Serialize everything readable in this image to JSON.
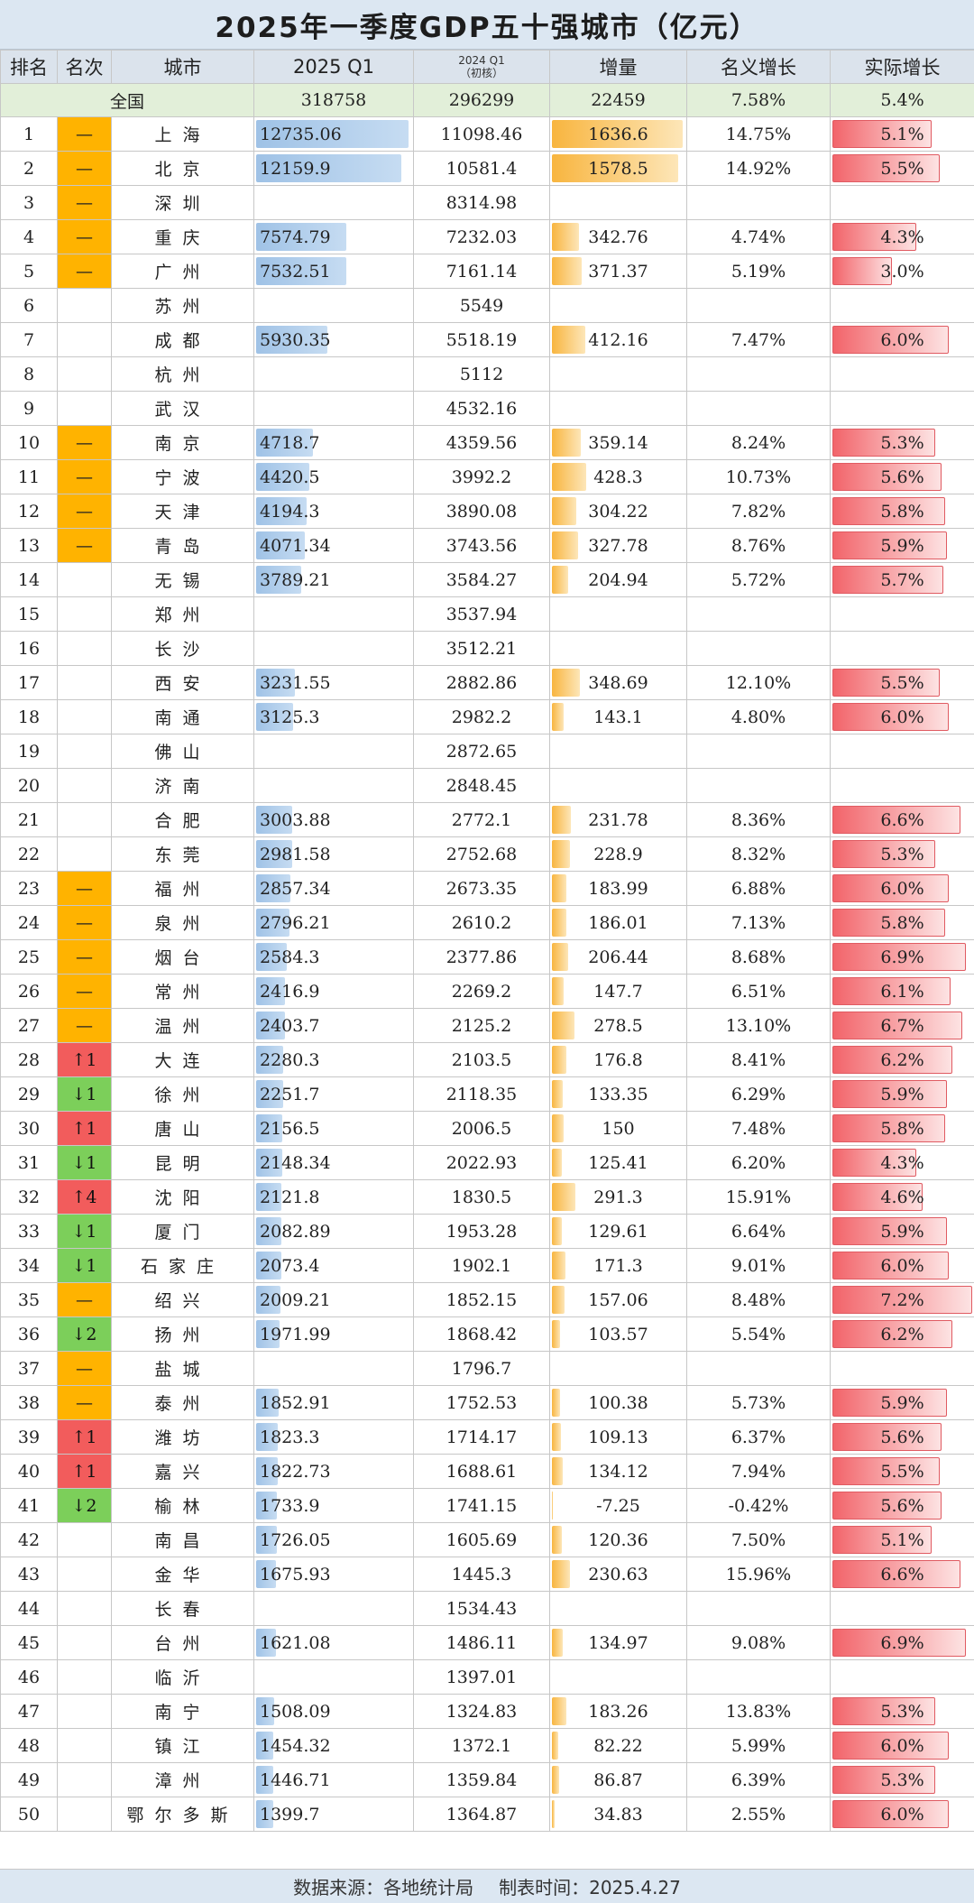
{
  "title": "2025年一季度GDP五十强城市（亿元）",
  "headers": {
    "rank": "排名",
    "change": "名次",
    "city": "城市",
    "q1_2025": "2025 Q1",
    "q1_2024_top": "2024 Q1",
    "q1_2024_bottom": "（初核）",
    "increase": "增量",
    "nominal": "名义增长",
    "real": "实际增长"
  },
  "national": {
    "label": "全国",
    "q1_2025": "318758",
    "q1_2024": "296299",
    "increase": "22459",
    "nominal": "7.58%",
    "real": "5.4%"
  },
  "colors": {
    "same": "#ffb300",
    "up": "#f25c5c",
    "down": "#7ccf5a",
    "bar_blue": "#9fc2e6",
    "bar_orange": "#f8b53f",
    "bar_red": "#f2646a"
  },
  "rows": [
    {
      "rank": "1",
      "change": "—",
      "dir": "same",
      "city": "上海",
      "q25": "12735.06",
      "q24": "11098.46",
      "inc": "1636.6",
      "nom": "14.75%",
      "real": "5.1%"
    },
    {
      "rank": "2",
      "change": "—",
      "dir": "same",
      "city": "北京",
      "q25": "12159.9",
      "q24": "10581.4",
      "inc": "1578.5",
      "nom": "14.92%",
      "real": "5.5%"
    },
    {
      "rank": "3",
      "change": "—",
      "dir": "same",
      "city": "深圳",
      "q25": "",
      "q24": "8314.98",
      "inc": "",
      "nom": "",
      "real": ""
    },
    {
      "rank": "4",
      "change": "—",
      "dir": "same",
      "city": "重庆",
      "q25": "7574.79",
      "q24": "7232.03",
      "inc": "342.76",
      "nom": "4.74%",
      "real": "4.3%"
    },
    {
      "rank": "5",
      "change": "—",
      "dir": "same",
      "city": "广州",
      "q25": "7532.51",
      "q24": "7161.14",
      "inc": "371.37",
      "nom": "5.19%",
      "real": "3.0%"
    },
    {
      "rank": "6",
      "change": "",
      "dir": "",
      "city": "苏州",
      "q25": "",
      "q24": "5549",
      "inc": "",
      "nom": "",
      "real": ""
    },
    {
      "rank": "7",
      "change": "",
      "dir": "",
      "city": "成都",
      "q25": "5930.35",
      "q24": "5518.19",
      "inc": "412.16",
      "nom": "7.47%",
      "real": "6.0%"
    },
    {
      "rank": "8",
      "change": "",
      "dir": "",
      "city": "杭州",
      "q25": "",
      "q24": "5112",
      "inc": "",
      "nom": "",
      "real": ""
    },
    {
      "rank": "9",
      "change": "",
      "dir": "",
      "city": "武汉",
      "q25": "",
      "q24": "4532.16",
      "inc": "",
      "nom": "",
      "real": ""
    },
    {
      "rank": "10",
      "change": "—",
      "dir": "same",
      "city": "南京",
      "q25": "4718.7",
      "q24": "4359.56",
      "inc": "359.14",
      "nom": "8.24%",
      "real": "5.3%"
    },
    {
      "rank": "11",
      "change": "—",
      "dir": "same",
      "city": "宁波",
      "q25": "4420.5",
      "q24": "3992.2",
      "inc": "428.3",
      "nom": "10.73%",
      "real": "5.6%"
    },
    {
      "rank": "12",
      "change": "—",
      "dir": "same",
      "city": "天津",
      "q25": "4194.3",
      "q24": "3890.08",
      "inc": "304.22",
      "nom": "7.82%",
      "real": "5.8%"
    },
    {
      "rank": "13",
      "change": "—",
      "dir": "same",
      "city": "青岛",
      "q25": "4071.34",
      "q24": "3743.56",
      "inc": "327.78",
      "nom": "8.76%",
      "real": "5.9%"
    },
    {
      "rank": "14",
      "change": "",
      "dir": "",
      "city": "无锡",
      "q25": "3789.21",
      "q24": "3584.27",
      "inc": "204.94",
      "nom": "5.72%",
      "real": "5.7%"
    },
    {
      "rank": "15",
      "change": "",
      "dir": "",
      "city": "郑州",
      "q25": "",
      "q24": "3537.94",
      "inc": "",
      "nom": "",
      "real": ""
    },
    {
      "rank": "16",
      "change": "",
      "dir": "",
      "city": "长沙",
      "q25": "",
      "q24": "3512.21",
      "inc": "",
      "nom": "",
      "real": ""
    },
    {
      "rank": "17",
      "change": "",
      "dir": "",
      "city": "西安",
      "q25": "3231.55",
      "q24": "2882.86",
      "inc": "348.69",
      "nom": "12.10%",
      "real": "5.5%"
    },
    {
      "rank": "18",
      "change": "",
      "dir": "",
      "city": "南通",
      "q25": "3125.3",
      "q24": "2982.2",
      "inc": "143.1",
      "nom": "4.80%",
      "real": "6.0%"
    },
    {
      "rank": "19",
      "change": "",
      "dir": "",
      "city": "佛山",
      "q25": "",
      "q24": "2872.65",
      "inc": "",
      "nom": "",
      "real": ""
    },
    {
      "rank": "20",
      "change": "",
      "dir": "",
      "city": "济南",
      "q25": "",
      "q24": "2848.45",
      "inc": "",
      "nom": "",
      "real": ""
    },
    {
      "rank": "21",
      "change": "",
      "dir": "",
      "city": "合肥",
      "q25": "3003.88",
      "q24": "2772.1",
      "inc": "231.78",
      "nom": "8.36%",
      "real": "6.6%"
    },
    {
      "rank": "22",
      "change": "",
      "dir": "",
      "city": "东莞",
      "q25": "2981.58",
      "q24": "2752.68",
      "inc": "228.9",
      "nom": "8.32%",
      "real": "5.3%"
    },
    {
      "rank": "23",
      "change": "—",
      "dir": "same",
      "city": "福州",
      "q25": "2857.34",
      "q24": "2673.35",
      "inc": "183.99",
      "nom": "6.88%",
      "real": "6.0%"
    },
    {
      "rank": "24",
      "change": "—",
      "dir": "same",
      "city": "泉州",
      "q25": "2796.21",
      "q24": "2610.2",
      "inc": "186.01",
      "nom": "7.13%",
      "real": "5.8%"
    },
    {
      "rank": "25",
      "change": "—",
      "dir": "same",
      "city": "烟台",
      "q25": "2584.3",
      "q24": "2377.86",
      "inc": "206.44",
      "nom": "8.68%",
      "real": "6.9%"
    },
    {
      "rank": "26",
      "change": "—",
      "dir": "same",
      "city": "常州",
      "q25": "2416.9",
      "q24": "2269.2",
      "inc": "147.7",
      "nom": "6.51%",
      "real": "6.1%"
    },
    {
      "rank": "27",
      "change": "—",
      "dir": "same",
      "city": "温州",
      "q25": "2403.7",
      "q24": "2125.2",
      "inc": "278.5",
      "nom": "13.10%",
      "real": "6.7%"
    },
    {
      "rank": "28",
      "change": "↑1",
      "dir": "up",
      "city": "大连",
      "q25": "2280.3",
      "q24": "2103.5",
      "inc": "176.8",
      "nom": "8.41%",
      "real": "6.2%"
    },
    {
      "rank": "29",
      "change": "↓1",
      "dir": "down",
      "city": "徐州",
      "q25": "2251.7",
      "q24": "2118.35",
      "inc": "133.35",
      "nom": "6.29%",
      "real": "5.9%"
    },
    {
      "rank": "30",
      "change": "↑1",
      "dir": "up",
      "city": "唐山",
      "q25": "2156.5",
      "q24": "2006.5",
      "inc": "150",
      "nom": "7.48%",
      "real": "5.8%"
    },
    {
      "rank": "31",
      "change": "↓1",
      "dir": "down",
      "city": "昆明",
      "q25": "2148.34",
      "q24": "2022.93",
      "inc": "125.41",
      "nom": "6.20%",
      "real": "4.3%"
    },
    {
      "rank": "32",
      "change": "↑4",
      "dir": "up",
      "city": "沈阳",
      "q25": "2121.8",
      "q24": "1830.5",
      "inc": "291.3",
      "nom": "15.91%",
      "real": "4.6%"
    },
    {
      "rank": "33",
      "change": "↓1",
      "dir": "down",
      "city": "厦门",
      "q25": "2082.89",
      "q24": "1953.28",
      "inc": "129.61",
      "nom": "6.64%",
      "real": "5.9%"
    },
    {
      "rank": "34",
      "change": "↓1",
      "dir": "down",
      "city": "石家庄",
      "q25": "2073.4",
      "q24": "1902.1",
      "inc": "171.3",
      "nom": "9.01%",
      "real": "6.0%"
    },
    {
      "rank": "35",
      "change": "—",
      "dir": "same",
      "city": "绍兴",
      "q25": "2009.21",
      "q24": "1852.15",
      "inc": "157.06",
      "nom": "8.48%",
      "real": "7.2%"
    },
    {
      "rank": "36",
      "change": "↓2",
      "dir": "down",
      "city": "扬州",
      "q25": "1971.99",
      "q24": "1868.42",
      "inc": "103.57",
      "nom": "5.54%",
      "real": "6.2%"
    },
    {
      "rank": "37",
      "change": "—",
      "dir": "same",
      "city": "盐城",
      "q25": "",
      "q24": "1796.7",
      "inc": "",
      "nom": "",
      "real": ""
    },
    {
      "rank": "38",
      "change": "—",
      "dir": "same",
      "city": "泰州",
      "q25": "1852.91",
      "q24": "1752.53",
      "inc": "100.38",
      "nom": "5.73%",
      "real": "5.9%"
    },
    {
      "rank": "39",
      "change": "↑1",
      "dir": "up",
      "city": "潍坊",
      "q25": "1823.3",
      "q24": "1714.17",
      "inc": "109.13",
      "nom": "6.37%",
      "real": "5.6%"
    },
    {
      "rank": "40",
      "change": "↑1",
      "dir": "up",
      "city": "嘉兴",
      "q25": "1822.73",
      "q24": "1688.61",
      "inc": "134.12",
      "nom": "7.94%",
      "real": "5.5%"
    },
    {
      "rank": "41",
      "change": "↓2",
      "dir": "down",
      "city": "榆林",
      "q25": "1733.9",
      "q24": "1741.15",
      "inc": "-7.25",
      "nom": "-0.42%",
      "real": "5.6%"
    },
    {
      "rank": "42",
      "change": "",
      "dir": "",
      "city": "南昌",
      "q25": "1726.05",
      "q24": "1605.69",
      "inc": "120.36",
      "nom": "7.50%",
      "real": "5.1%"
    },
    {
      "rank": "43",
      "change": "",
      "dir": "",
      "city": "金华",
      "q25": "1675.93",
      "q24": "1445.3",
      "inc": "230.63",
      "nom": "15.96%",
      "real": "6.6%"
    },
    {
      "rank": "44",
      "change": "",
      "dir": "",
      "city": "长春",
      "q25": "",
      "q24": "1534.43",
      "inc": "",
      "nom": "",
      "real": ""
    },
    {
      "rank": "45",
      "change": "",
      "dir": "",
      "city": "台州",
      "q25": "1621.08",
      "q24": "1486.11",
      "inc": "134.97",
      "nom": "9.08%",
      "real": "6.9%"
    },
    {
      "rank": "46",
      "change": "",
      "dir": "",
      "city": "临沂",
      "q25": "",
      "q24": "1397.01",
      "inc": "",
      "nom": "",
      "real": ""
    },
    {
      "rank": "47",
      "change": "",
      "dir": "",
      "city": "南宁",
      "q25": "1508.09",
      "q24": "1324.83",
      "inc": "183.26",
      "nom": "13.83%",
      "real": "5.3%"
    },
    {
      "rank": "48",
      "change": "",
      "dir": "",
      "city": "镇江",
      "q25": "1454.32",
      "q24": "1372.1",
      "inc": "82.22",
      "nom": "5.99%",
      "real": "6.0%"
    },
    {
      "rank": "49",
      "change": "",
      "dir": "",
      "city": "漳州",
      "q25": "1446.71",
      "q24": "1359.84",
      "inc": "86.87",
      "nom": "6.39%",
      "real": "5.3%"
    },
    {
      "rank": "50",
      "change": "",
      "dir": "",
      "city": "鄂尔多斯",
      "q25": "1399.7",
      "q24": "1364.87",
      "inc": "34.83",
      "nom": "2.55%",
      "real": "6.0%"
    }
  ],
  "footer": {
    "source": "数据来源：各地统计局",
    "time": "制表时间：2025.4.27"
  }
}
